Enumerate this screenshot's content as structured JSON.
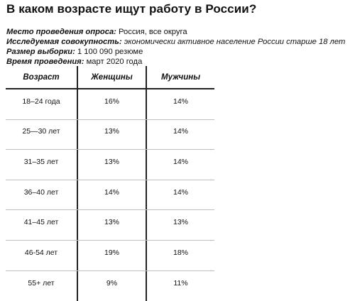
{
  "title": "В каком возрасте ищут работу в России?",
  "meta": [
    {
      "key": "Место проведения опроса:",
      "value": "Россия, все округа",
      "italic": false
    },
    {
      "key": "Исследуемая совокупность:",
      "value": "экономически активное население России старше 18 лет",
      "italic": true
    },
    {
      "key": "Размер выборки:",
      "value": "1 100 090 резюме",
      "italic": false
    },
    {
      "key": "Время проведения:",
      "value": "март 2020 года",
      "italic": false
    }
  ],
  "table": {
    "headers": [
      "Возраст",
      "Женщины",
      "Мужчины"
    ],
    "rows": [
      [
        "18–24 года",
        "16%",
        "14%"
      ],
      [
        "25—30 лет",
        "13%",
        "14%"
      ],
      [
        "31–35 лет",
        "13%",
        "14%"
      ],
      [
        "36–40 лет",
        "14%",
        "14%"
      ],
      [
        "41–45 лет",
        "13%",
        "13%"
      ],
      [
        "46-54 лет",
        "19%",
        "18%"
      ],
      [
        "55+ лет",
        "9%",
        "11%"
      ]
    ]
  }
}
